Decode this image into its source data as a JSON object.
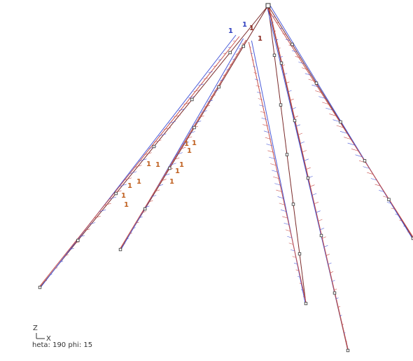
{
  "view": {
    "axis_z": "Z",
    "axis_x": "X",
    "orientation": "heta: 190  phi: 15"
  },
  "load_labels": [
    "1",
    "1",
    "1",
    "1",
    "1",
    "1",
    "1",
    "1",
    "1",
    "1",
    "1",
    "1",
    "1",
    "1",
    "1",
    "1"
  ]
}
